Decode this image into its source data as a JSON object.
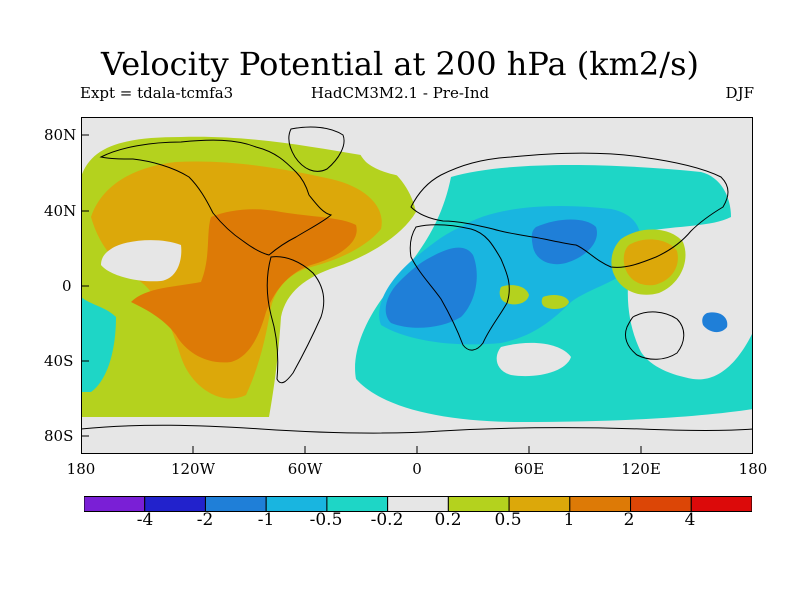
{
  "title": "Velocity Potential at 200 hPa (km2/s)",
  "left_subtitle": "Expt = tdala-tcmfa3",
  "center_subtitle": "HadCM3M2.1 - Pre-Ind",
  "right_subtitle": "DJF",
  "lon_labels": [
    "180",
    "120W",
    "60W",
    "0",
    "60E",
    "120E",
    "180"
  ],
  "lat_labels": [
    "80N",
    "40N",
    "0",
    "40S",
    "80S"
  ],
  "colorbar": {
    "labels": [
      "-4",
      "-2",
      "-1",
      "-0.5",
      "-0.2",
      "0.2",
      "0.5",
      "1",
      "2",
      "4"
    ],
    "colors": [
      "#7a1fd6",
      "#2222cc",
      "#1f7fd8",
      "#19b5e0",
      "#1ed6c6",
      "#e6e6e6",
      "#b4d21e",
      "#dca80a",
      "#dd7a06",
      "#dc4606",
      "#dc0a0a"
    ]
  }
}
